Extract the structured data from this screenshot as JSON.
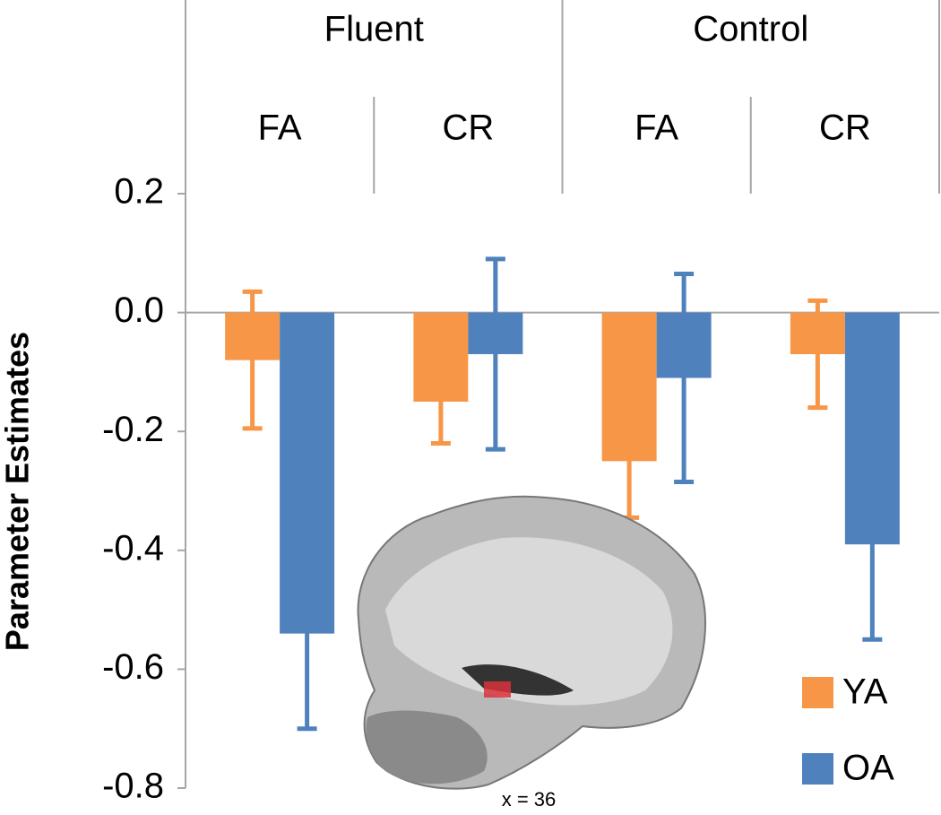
{
  "chart_data": {
    "type": "bar",
    "y_label": "Parameter Estimates",
    "groups": [
      "Fluent",
      "Control"
    ],
    "categories": [
      "FA",
      "CR",
      "FA",
      "CR"
    ],
    "series": [
      {
        "name": "YA",
        "color": "#f79646",
        "values": [
          -0.08,
          -0.15,
          -0.25,
          -0.07
        ],
        "errors": [
          0.115,
          0.07,
          0.095,
          0.09
        ]
      },
      {
        "name": "OA",
        "color": "#4f81bd",
        "values": [
          -0.54,
          -0.07,
          -0.11,
          -0.39
        ],
        "errors": [
          0.16,
          0.16,
          0.175,
          0.16
        ]
      }
    ],
    "ylim": [
      -0.8,
      0.2
    ],
    "yticks": [
      0.2,
      {
        "value": 0,
        "label": "0.0"
      },
      -0.2,
      -0.4,
      -0.6,
      -0.8
    ],
    "legend": "lower right",
    "annotation": "x = 36"
  }
}
